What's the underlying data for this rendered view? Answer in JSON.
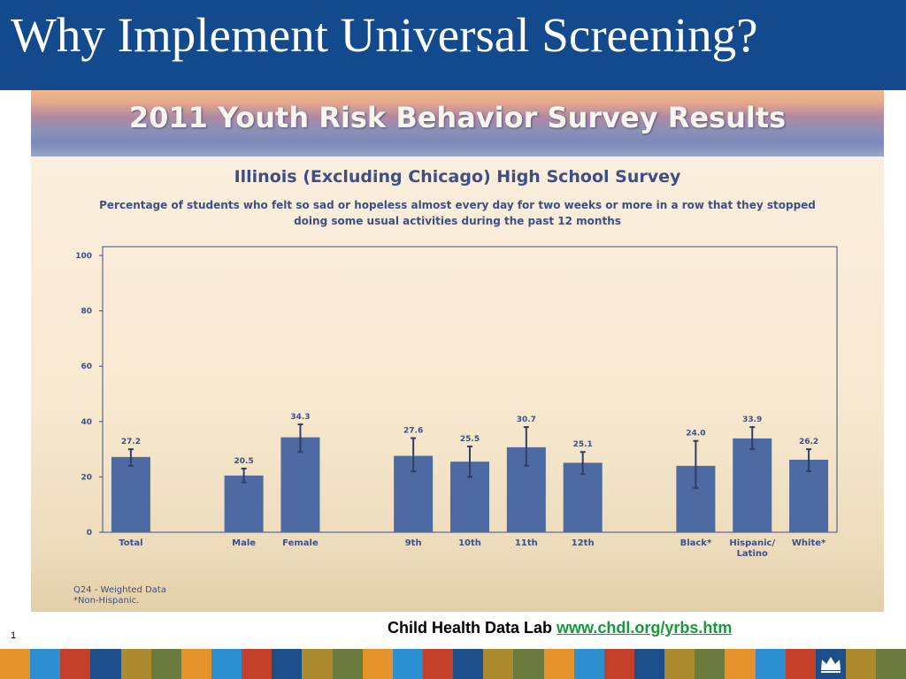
{
  "slide": {
    "title": "Why Implement Universal Screening?",
    "number": "1",
    "banner_title": "2011 Youth Risk Behavior Survey Results",
    "source_label": "Child Health Data Lab",
    "source_link": "www.chdl.org/yrbs.htm",
    "footnotes": [
      "Q24 - Weighted Data",
      "*Non-Hispanic."
    ],
    "colors": {
      "title_bar": "#134a8e",
      "bar": "#4d6aa2",
      "link": "#149a3a",
      "stripe": [
        "#e5922a",
        "#2b8fd1",
        "#c43f28",
        "#1c4e8c",
        "#ad8a2e",
        "#6b7b3d",
        "#e5922a",
        "#2b8fd1",
        "#c43f28",
        "#1c4e8c",
        "#ad8a2e",
        "#6b7b3d",
        "#e5922a",
        "#2b8fd1",
        "#c43f28",
        "#1c4e8c",
        "#ad8a2e",
        "#6b7b3d",
        "#e5922a",
        "#2b8fd1",
        "#c43f28",
        "#1c4e8c",
        "#ad8a2e",
        "#6b7b3d",
        "#e5922a",
        "#2b8fd1",
        "#c43f28",
        "#1c4e8c",
        "#ad8a2e",
        "#6b7b3d"
      ]
    },
    "crest_icon": "crown-icon"
  },
  "chart_data": {
    "type": "bar",
    "title": "Illinois (Excluding Chicago) High School Survey",
    "subtitle": "Percentage of students who felt so sad or hopeless almost every day for two weeks or more in a row that they stopped doing some usual activities during the past 12 months",
    "xlabel": "",
    "ylabel": "",
    "ylim": [
      0,
      100
    ],
    "yticks": [
      0,
      20,
      40,
      60,
      80,
      100
    ],
    "grid": false,
    "legend": "none",
    "groups": [
      [
        "Total"
      ],
      [
        "Male",
        "Female"
      ],
      [
        "9th",
        "10th",
        "11th",
        "12th"
      ],
      [
        "Black*",
        "Hispanic/ Latino",
        "White*"
      ]
    ],
    "categories": [
      "Total",
      "Male",
      "Female",
      "9th",
      "10th",
      "11th",
      "12th",
      "Black*",
      "Hispanic/ Latino",
      "White*"
    ],
    "values": [
      27.2,
      20.5,
      34.3,
      27.6,
      25.5,
      30.7,
      25.1,
      24.0,
      33.9,
      26.2
    ],
    "labels": [
      "27.2",
      "20.5",
      "34.3",
      "27.6",
      "25.5",
      "30.7",
      "25.1",
      "24.0",
      "33.9",
      "26.2"
    ],
    "error_low": [
      24.0,
      18.0,
      29.0,
      22.0,
      20.0,
      24.0,
      21.0,
      16.0,
      30.0,
      22.0
    ],
    "error_high": [
      30.0,
      23.0,
      39.0,
      34.0,
      31.0,
      38.0,
      29.0,
      33.0,
      38.0,
      30.0
    ]
  }
}
